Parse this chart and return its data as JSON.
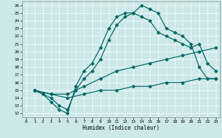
{
  "xlabel": "Humidex (Indice chaleur)",
  "bg_color": "#cce8e8",
  "line_color": "#006666",
  "marker": "D",
  "markersize": 2.5,
  "linewidth": 0.9,
  "xlim": [
    -0.5,
    23.5
  ],
  "ylim": [
    11.5,
    26.5
  ],
  "xticks": [
    0,
    1,
    2,
    3,
    4,
    5,
    6,
    7,
    8,
    9,
    10,
    11,
    12,
    13,
    14,
    15,
    16,
    17,
    18,
    19,
    20,
    21,
    22,
    23
  ],
  "yticks": [
    12,
    13,
    14,
    15,
    16,
    17,
    18,
    19,
    20,
    21,
    22,
    23,
    24,
    25,
    26
  ],
  "lines": [
    {
      "x": [
        1,
        2,
        3,
        4,
        5,
        6,
        7,
        8,
        9,
        10,
        11,
        12,
        13,
        14,
        15,
        16,
        17,
        18,
        19,
        20,
        21,
        22,
        23
      ],
      "y": [
        15,
        14.5,
        13.5,
        12.5,
        12,
        15.5,
        17.5,
        18.5,
        20.5,
        23,
        24.5,
        25,
        25,
        26,
        25.5,
        25,
        23,
        22.5,
        22,
        21,
        18,
        16.5,
        16.5
      ]
    },
    {
      "x": [
        1,
        2,
        3,
        4,
        5,
        6,
        7,
        8,
        9,
        10,
        11,
        12,
        13,
        14,
        15,
        16,
        17,
        18,
        19,
        20,
        21,
        22,
        23
      ],
      "y": [
        15,
        14.5,
        14,
        13,
        12.5,
        15,
        16.5,
        17.5,
        19,
        21.5,
        23.5,
        24.5,
        25,
        24.5,
        24,
        22.5,
        22,
        21.5,
        21,
        20.5,
        21,
        18.5,
        17.5
      ]
    },
    {
      "x": [
        1,
        3,
        5,
        7,
        9,
        11,
        13,
        15,
        17,
        19,
        21,
        23
      ],
      "y": [
        15,
        14.5,
        14.5,
        15.5,
        16.5,
        17.5,
        18,
        18.5,
        19,
        19.5,
        20,
        20.5
      ]
    },
    {
      "x": [
        1,
        3,
        5,
        7,
        9,
        11,
        13,
        15,
        17,
        19,
        21,
        23
      ],
      "y": [
        15,
        14.5,
        14,
        14.5,
        15,
        15,
        15.5,
        15.5,
        16,
        16,
        16.5,
        16.5
      ]
    }
  ]
}
